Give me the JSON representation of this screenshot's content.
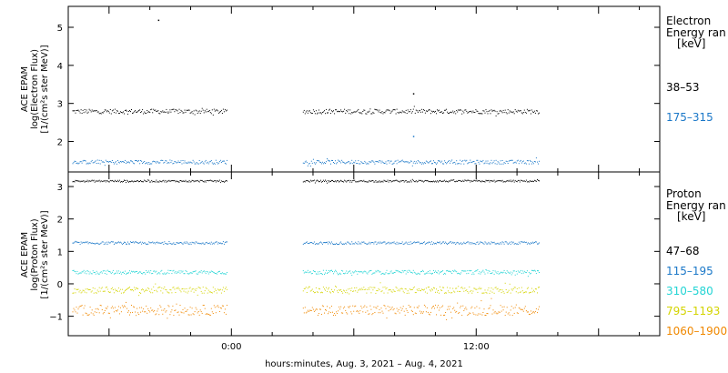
{
  "chart_data": [
    {
      "type": "scatter",
      "ylabel_lines": [
        "ACE EPAM",
        "log(Electron Flux)",
        "[1/(cm²s ster MeV)]"
      ],
      "ylim": [
        1.2,
        5.55
      ],
      "yticks": [
        2,
        3,
        4,
        5
      ],
      "legend_title": [
        "Electron",
        "Energy ran",
        "[keV]"
      ],
      "series": [
        {
          "name": "38–53",
          "color": "#000000",
          "base": 2.8,
          "spread": 0.06
        },
        {
          "name": "175–315",
          "color": "#1b78c8",
          "base": 1.47,
          "spread": 0.05
        }
      ],
      "outliers": [
        {
          "x": -3.6,
          "y": 5.2,
          "color": "#000000"
        },
        {
          "x": 8.9,
          "y": 3.27,
          "color": "#000000"
        },
        {
          "x": 8.9,
          "y": 2.15,
          "color": "#1b78c8"
        }
      ]
    },
    {
      "type": "scatter",
      "ylabel_lines": [
        "ACE EPAM",
        "log(Proton Flux)",
        "[1/(cm²s ster MeV)]"
      ],
      "ylim": [
        -1.6,
        3.45
      ],
      "yticks": [
        -1,
        0,
        1,
        2,
        3
      ],
      "legend_title": [
        "Proton",
        "Energy ran",
        "[keV]"
      ],
      "series": [
        {
          "name": "47–68",
          "color": "#000000",
          "base": 3.18,
          "spread": 0.03
        },
        {
          "name": "115–195",
          "color": "#1b78c8",
          "base": 1.27,
          "spread": 0.04
        },
        {
          "name": "310–580",
          "color": "#22d4d4",
          "base": 0.37,
          "spread": 0.06
        },
        {
          "name": "795–1193",
          "color": "#d4d400",
          "base": -0.18,
          "spread": 0.1
        },
        {
          "name": "1060–1900",
          "color": "#f08800",
          "base": -0.8,
          "spread": 0.16
        }
      ]
    }
  ],
  "x_axis": {
    "range_hours": [
      -8,
      21
    ],
    "tick_labels": [
      {
        "x": 0,
        "label": "0:00"
      },
      {
        "x": 12,
        "label": "12:00"
      }
    ],
    "title": "hours:minutes, Aug.  3, 2021 – Aug.  4, 2021",
    "data_segments": [
      [
        -7.8,
        -0.2
      ],
      [
        3.5,
        15.1
      ]
    ]
  }
}
